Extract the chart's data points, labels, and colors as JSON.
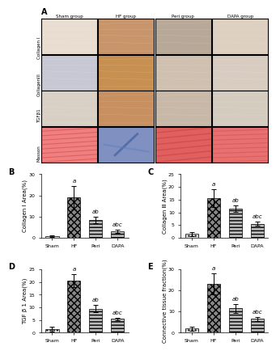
{
  "panel_A_label": "A",
  "row_labels": [
    "Collagen I",
    "CollagenIII",
    "TGFβ1",
    "Masson"
  ],
  "col_labels": [
    "Sham group",
    "HF group",
    "Peri group",
    "DAPA group"
  ],
  "charts": {
    "B": {
      "label": "B",
      "ylabel": "Collagen Ⅰ Area(%)",
      "ylim": [
        0,
        30
      ],
      "yticks": [
        0,
        10,
        20,
        30
      ],
      "categories": [
        "Sham",
        "HF",
        "Peri",
        "DAPA"
      ],
      "values": [
        0.8,
        19.0,
        8.5,
        3.0
      ],
      "errors": [
        0.3,
        5.5,
        1.5,
        0.8
      ],
      "sig_labels": [
        "",
        "a",
        "ab",
        "abc"
      ]
    },
    "C": {
      "label": "C",
      "ylabel": "Collagen Ⅲ Area(%)",
      "ylim": [
        0,
        25
      ],
      "yticks": [
        0,
        5,
        10,
        15,
        20,
        25
      ],
      "categories": [
        "Sham",
        "HF",
        "Peri",
        "DAPA"
      ],
      "values": [
        1.5,
        15.5,
        11.5,
        5.5
      ],
      "errors": [
        0.8,
        3.5,
        1.2,
        0.8
      ],
      "sig_labels": [
        "",
        "a",
        "ab",
        "abc"
      ]
    },
    "D": {
      "label": "D",
      "ylabel": "TGF β 1 Area(%)",
      "ylim": [
        0,
        25
      ],
      "yticks": [
        0,
        5,
        10,
        15,
        20,
        25
      ],
      "categories": [
        "Sham",
        "HF",
        "Peri",
        "DAPA"
      ],
      "values": [
        1.5,
        20.5,
        9.5,
        5.5
      ],
      "errors": [
        1.0,
        2.5,
        1.5,
        0.5
      ],
      "sig_labels": [
        "",
        "a",
        "ab",
        "abc"
      ]
    },
    "E": {
      "label": "E",
      "ylabel": "Connective tissue fraction(%)",
      "ylim": [
        0,
        30
      ],
      "yticks": [
        0,
        10,
        20,
        30
      ],
      "categories": [
        "Sham",
        "HF",
        "Peri",
        "DAPA"
      ],
      "values": [
        2.0,
        23.0,
        11.5,
        6.5
      ],
      "errors": [
        1.0,
        5.0,
        2.0,
        1.0
      ],
      "sig_labels": [
        "",
        "a",
        "ab",
        "abc"
      ]
    }
  },
  "micro_colors": [
    [
      "#e8ddd0",
      "#c8956a",
      "#b8a898",
      "#ddd0c0"
    ],
    [
      "#c8c8d5",
      "#c89050",
      "#cfc0b0",
      "#d8ccc0"
    ],
    [
      "#d8d0c5",
      "#c89060",
      "#c8b8a8",
      "#d5ccc0"
    ],
    [
      "#f08080",
      "#8090c0",
      "#e06060",
      "#e87070"
    ]
  ],
  "figure_bg": "#ffffff",
  "font_size_labels": 5,
  "font_size_ticks": 4.5,
  "font_size_panel": 7,
  "font_size_sig": 5,
  "bar_hatches": [
    "....",
    "xxxx",
    "----",
    "----"
  ],
  "bar_facecolors": [
    "#dddddd",
    "#888888",
    "#bbbbbb",
    "#bbbbbb"
  ]
}
